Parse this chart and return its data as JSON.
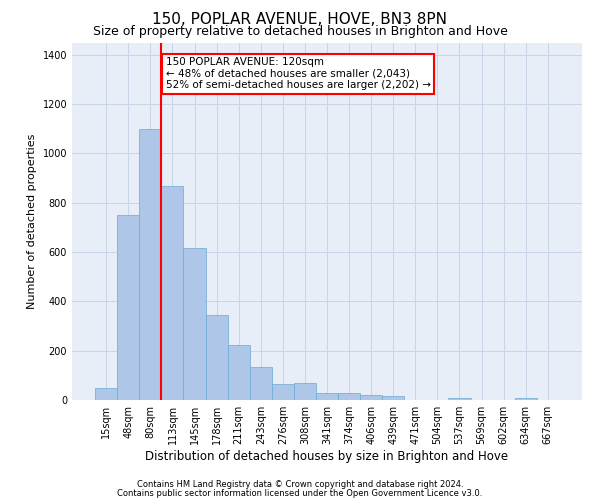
{
  "title": "150, POPLAR AVENUE, HOVE, BN3 8PN",
  "subtitle": "Size of property relative to detached houses in Brighton and Hove",
  "xlabel": "Distribution of detached houses by size in Brighton and Hove",
  "ylabel": "Number of detached properties",
  "footnote1": "Contains HM Land Registry data © Crown copyright and database right 2024.",
  "footnote2": "Contains public sector information licensed under the Open Government Licence v3.0.",
  "categories": [
    "15sqm",
    "48sqm",
    "80sqm",
    "113sqm",
    "145sqm",
    "178sqm",
    "211sqm",
    "243sqm",
    "276sqm",
    "308sqm",
    "341sqm",
    "374sqm",
    "406sqm",
    "439sqm",
    "471sqm",
    "504sqm",
    "537sqm",
    "569sqm",
    "602sqm",
    "634sqm",
    "667sqm"
  ],
  "values": [
    50,
    750,
    1100,
    870,
    615,
    345,
    225,
    135,
    65,
    70,
    30,
    30,
    20,
    15,
    0,
    0,
    10,
    0,
    0,
    10,
    0
  ],
  "bar_color": "#aec6e8",
  "bar_edge_color": "#6aaad4",
  "grid_color": "#c8d4e8",
  "background_color": "#e8eef8",
  "vline_color": "red",
  "vline_x_index": 2.5,
  "annotation_text": "150 POPLAR AVENUE: 120sqm\n← 48% of detached houses are smaller (2,043)\n52% of semi-detached houses are larger (2,202) →",
  "annotation_box_color": "white",
  "annotation_box_edge_color": "red",
  "ylim": [
    0,
    1450
  ],
  "yticks": [
    0,
    200,
    400,
    600,
    800,
    1000,
    1200,
    1400
  ],
  "title_fontsize": 11,
  "subtitle_fontsize": 9,
  "ylabel_fontsize": 8,
  "xlabel_fontsize": 8.5,
  "tick_fontsize": 7,
  "footnote_fontsize": 6,
  "annotation_fontsize": 7.5
}
